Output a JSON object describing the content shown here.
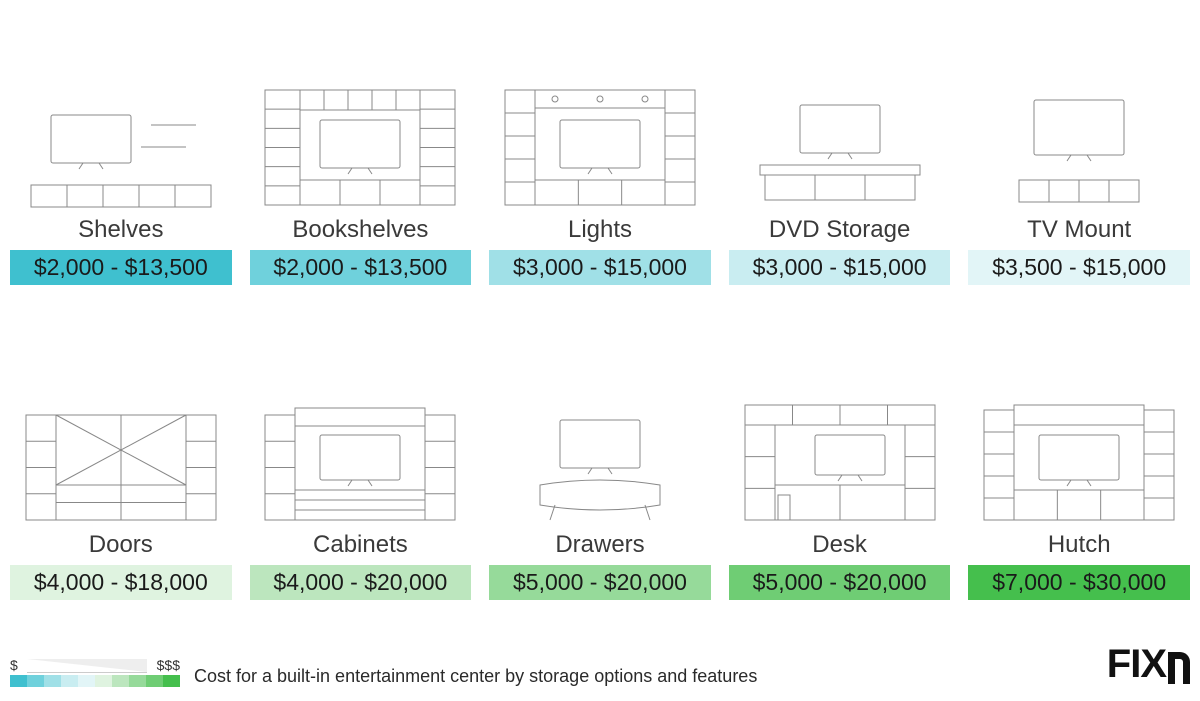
{
  "caption": "Cost for a built-in entertainment center by storage options and features",
  "legend": {
    "low": "$",
    "high": "$$$"
  },
  "logo_text": "FIX",
  "swatches": [
    "#3fc0cf",
    "#6fd1dc",
    "#a0e0e7",
    "#c9edf1",
    "#e2f5f7",
    "#dff3e0",
    "#bce6be",
    "#96da9a",
    "#6fcd74",
    "#45bf4d"
  ],
  "items": [
    {
      "label": "Shelves",
      "price": "$2,000 - $13,500",
      "bg": "#3fc0cf",
      "icon": "shelves"
    },
    {
      "label": "Bookshelves",
      "price": "$2,000 - $13,500",
      "bg": "#6fd1dc",
      "icon": "bookshelves"
    },
    {
      "label": "Lights",
      "price": "$3,000 - $15,000",
      "bg": "#a0e0e7",
      "icon": "lights"
    },
    {
      "label": "DVD Storage",
      "price": "$3,000 - $15,000",
      "bg": "#c9edf1",
      "icon": "dvd"
    },
    {
      "label": "TV Mount",
      "price": "$3,500 - $15,000",
      "bg": "#e2f5f7",
      "icon": "tvmount"
    },
    {
      "label": "Doors",
      "price": "$4,000 - $18,000",
      "bg": "#dff3e0",
      "icon": "doors"
    },
    {
      "label": "Cabinets",
      "price": "$4,000 - $20,000",
      "bg": "#bce6be",
      "icon": "cabinets"
    },
    {
      "label": "Drawers",
      "price": "$5,000 - $20,000",
      "bg": "#96da9a",
      "icon": "drawers"
    },
    {
      "label": "Desk",
      "price": "$5,000 - $20,000",
      "bg": "#6fcd74",
      "icon": "desk"
    },
    {
      "label": "Hutch",
      "price": "$7,000 - $30,000",
      "bg": "#45bf4d",
      "icon": "hutch"
    }
  ]
}
